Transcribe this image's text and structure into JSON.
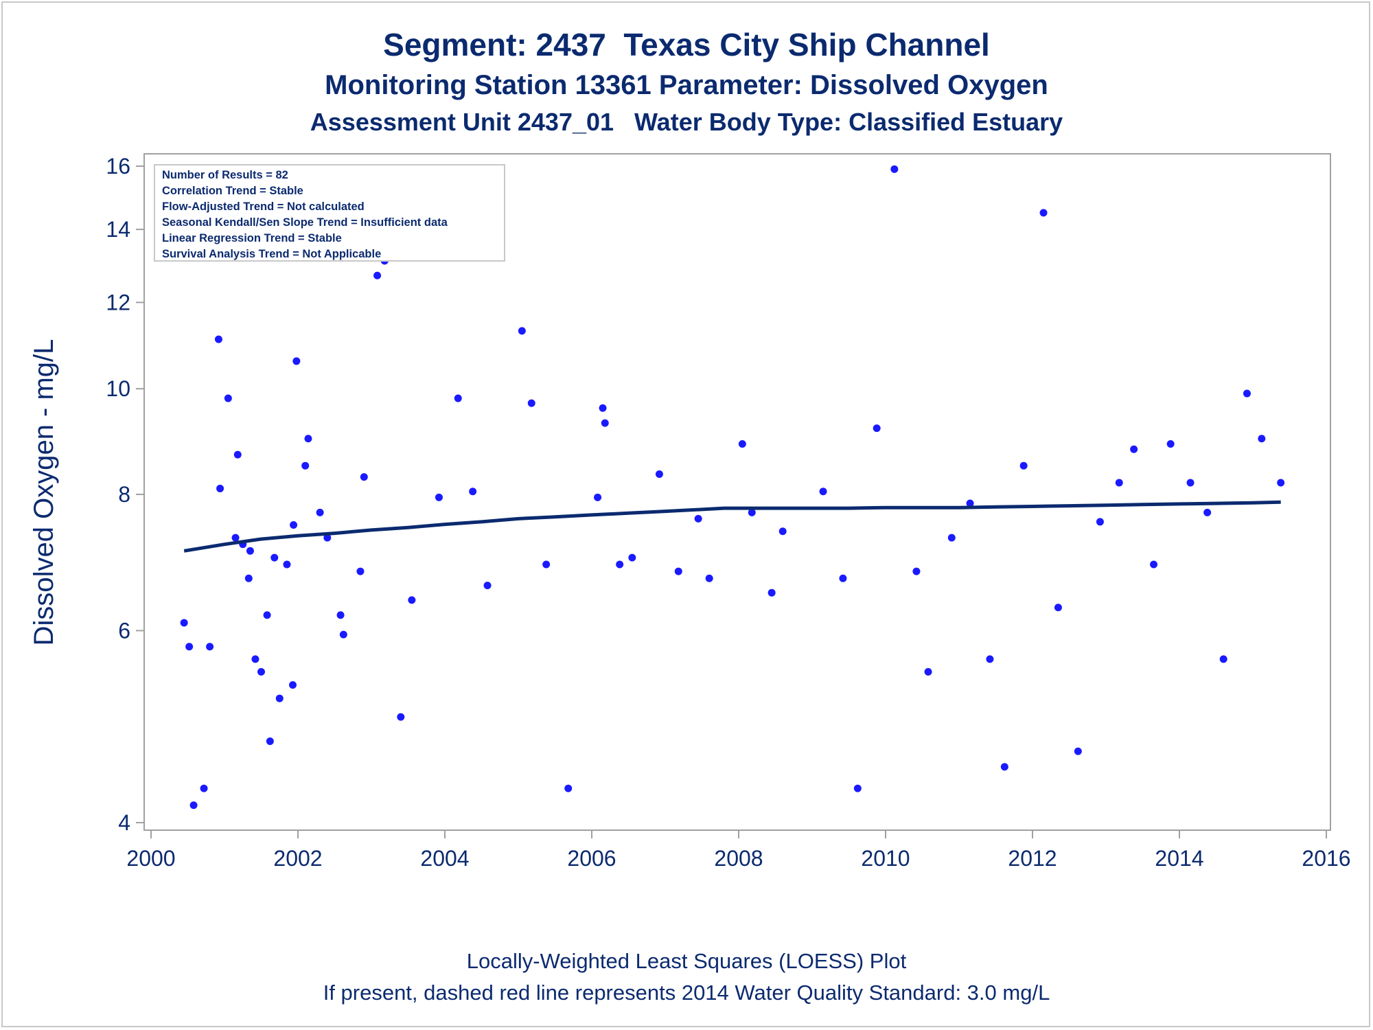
{
  "titles": {
    "line1": "Segment: 2437  Texas City Ship Channel",
    "line2": "Monitoring Station 13361 Parameter: Dissolved Oxygen",
    "line3": "Assessment Unit 2437_01   Water Body Type: Classified Estuary"
  },
  "footnotes": {
    "line1": "Locally-Weighted Least Squares (LOESS) Plot",
    "line2": "If present, dashed red line represents 2014 Water Quality Standard: 3.0 mg/L"
  },
  "stats_box": {
    "lines": [
      "Number of Results = 82",
      "Correlation Trend = Stable",
      "Flow-Adjusted Trend = Not calculated",
      "Seasonal Kendall/Sen Slope Trend = Insufficient data",
      "Linear Regression Trend = Stable",
      "Survival Analysis Trend = Not Applicable"
    ]
  },
  "colors": {
    "text": "#0b2a6f",
    "points": "#1a1aff",
    "loess": "#0b2a6f",
    "axis": "#a0a0a0"
  },
  "chart_data": {
    "type": "scatter",
    "xlabel": "",
    "ylabel": "Dissolved Oxygen - mg/L",
    "y_scale": "log",
    "xlim": [
      2000,
      2016
    ],
    "ylim": [
      3.95,
      16.3
    ],
    "x_ticks": [
      2000,
      2002,
      2004,
      2006,
      2008,
      2010,
      2012,
      2014,
      2016
    ],
    "y_ticks": [
      4,
      6,
      8,
      10,
      12,
      14,
      16
    ],
    "grid": false,
    "points": [
      {
        "x": 2000.45,
        "y": 6.1
      },
      {
        "x": 2000.52,
        "y": 5.8
      },
      {
        "x": 2000.58,
        "y": 4.15
      },
      {
        "x": 2000.72,
        "y": 4.3
      },
      {
        "x": 2000.8,
        "y": 5.8
      },
      {
        "x": 2000.92,
        "y": 11.1
      },
      {
        "x": 2000.94,
        "y": 8.1
      },
      {
        "x": 2001.05,
        "y": 9.8
      },
      {
        "x": 2001.15,
        "y": 7.3
      },
      {
        "x": 2001.18,
        "y": 8.7
      },
      {
        "x": 2001.25,
        "y": 7.2
      },
      {
        "x": 2001.33,
        "y": 6.7
      },
      {
        "x": 2001.35,
        "y": 7.1
      },
      {
        "x": 2001.42,
        "y": 5.65
      },
      {
        "x": 2001.5,
        "y": 5.5
      },
      {
        "x": 2001.58,
        "y": 6.2
      },
      {
        "x": 2001.62,
        "y": 4.75
      },
      {
        "x": 2001.68,
        "y": 7.0
      },
      {
        "x": 2001.75,
        "y": 5.2
      },
      {
        "x": 2001.85,
        "y": 6.9
      },
      {
        "x": 2001.93,
        "y": 5.35
      },
      {
        "x": 2001.94,
        "y": 7.5
      },
      {
        "x": 2001.98,
        "y": 10.6
      },
      {
        "x": 2002.1,
        "y": 8.5
      },
      {
        "x": 2002.14,
        "y": 9.0
      },
      {
        "x": 2002.3,
        "y": 7.7
      },
      {
        "x": 2002.4,
        "y": 7.3
      },
      {
        "x": 2002.58,
        "y": 6.2
      },
      {
        "x": 2002.62,
        "y": 5.95
      },
      {
        "x": 2002.85,
        "y": 6.8
      },
      {
        "x": 2002.9,
        "y": 8.3
      },
      {
        "x": 2003.08,
        "y": 12.7
      },
      {
        "x": 2003.18,
        "y": 13.1
      },
      {
        "x": 2003.4,
        "y": 5.0
      },
      {
        "x": 2003.55,
        "y": 6.4
      },
      {
        "x": 2003.92,
        "y": 7.95
      },
      {
        "x": 2004.18,
        "y": 9.8
      },
      {
        "x": 2004.38,
        "y": 8.05
      },
      {
        "x": 2004.58,
        "y": 6.6
      },
      {
        "x": 2005.05,
        "y": 11.3
      },
      {
        "x": 2005.18,
        "y": 9.7
      },
      {
        "x": 2005.38,
        "y": 6.9
      },
      {
        "x": 2005.68,
        "y": 4.3
      },
      {
        "x": 2006.08,
        "y": 7.95
      },
      {
        "x": 2006.15,
        "y": 9.6
      },
      {
        "x": 2006.18,
        "y": 9.3
      },
      {
        "x": 2006.38,
        "y": 6.9
      },
      {
        "x": 2006.55,
        "y": 7.0
      },
      {
        "x": 2006.92,
        "y": 8.35
      },
      {
        "x": 2007.18,
        "y": 6.8
      },
      {
        "x": 2007.45,
        "y": 7.6
      },
      {
        "x": 2007.6,
        "y": 6.7
      },
      {
        "x": 2008.05,
        "y": 8.9
      },
      {
        "x": 2008.18,
        "y": 7.7
      },
      {
        "x": 2008.45,
        "y": 6.5
      },
      {
        "x": 2008.6,
        "y": 7.4
      },
      {
        "x": 2009.15,
        "y": 8.05
      },
      {
        "x": 2009.42,
        "y": 6.7
      },
      {
        "x": 2009.62,
        "y": 4.3
      },
      {
        "x": 2009.88,
        "y": 9.2
      },
      {
        "x": 2010.12,
        "y": 15.9
      },
      {
        "x": 2010.42,
        "y": 6.8
      },
      {
        "x": 2010.58,
        "y": 5.5
      },
      {
        "x": 2010.9,
        "y": 7.3
      },
      {
        "x": 2011.15,
        "y": 7.85
      },
      {
        "x": 2011.42,
        "y": 5.65
      },
      {
        "x": 2011.62,
        "y": 4.5
      },
      {
        "x": 2011.88,
        "y": 8.5
      },
      {
        "x": 2012.15,
        "y": 14.5
      },
      {
        "x": 2012.35,
        "y": 6.3
      },
      {
        "x": 2012.62,
        "y": 4.65
      },
      {
        "x": 2012.92,
        "y": 7.55
      },
      {
        "x": 2013.18,
        "y": 8.2
      },
      {
        "x": 2013.38,
        "y": 8.8
      },
      {
        "x": 2013.65,
        "y": 6.9
      },
      {
        "x": 2013.88,
        "y": 8.9
      },
      {
        "x": 2014.15,
        "y": 8.2
      },
      {
        "x": 2014.38,
        "y": 7.7
      },
      {
        "x": 2014.6,
        "y": 5.65
      },
      {
        "x": 2014.92,
        "y": 9.9
      },
      {
        "x": 2015.12,
        "y": 9.0
      },
      {
        "x": 2015.38,
        "y": 8.2
      }
    ],
    "loess": {
      "x": [
        2000.45,
        2001.0,
        2001.5,
        2002.0,
        2002.5,
        2003.0,
        2003.5,
        2004.0,
        2004.5,
        2005.0,
        2005.5,
        2006.0,
        2006.5,
        2007.0,
        2007.5,
        2007.8,
        2008.5,
        2009.0,
        2009.5,
        2010.0,
        2010.5,
        2011.0,
        2011.5,
        2012.0,
        2012.5,
        2013.0,
        2013.5,
        2014.0,
        2014.5,
        2015.0,
        2015.38
      ],
      "y": [
        7.1,
        7.2,
        7.28,
        7.33,
        7.37,
        7.42,
        7.46,
        7.51,
        7.55,
        7.6,
        7.63,
        7.66,
        7.69,
        7.72,
        7.75,
        7.77,
        7.77,
        7.77,
        7.77,
        7.78,
        7.78,
        7.78,
        7.79,
        7.8,
        7.81,
        7.82,
        7.83,
        7.84,
        7.85,
        7.86,
        7.87
      ]
    }
  }
}
